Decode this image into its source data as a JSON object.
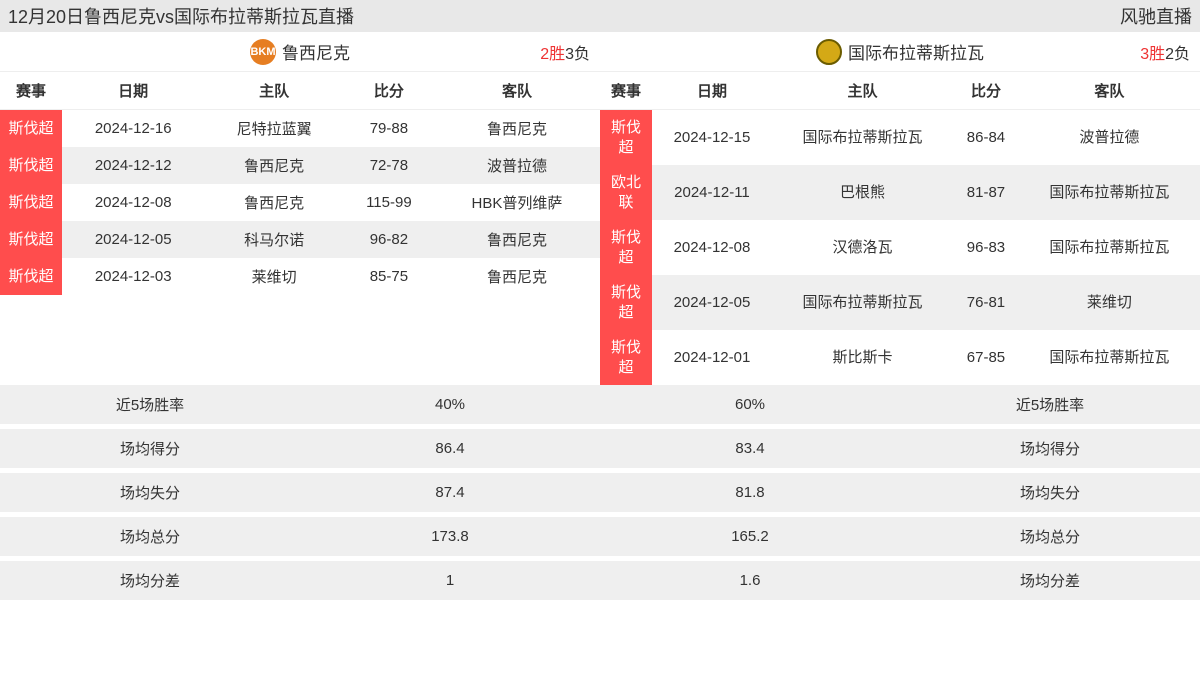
{
  "header": {
    "title": "12月20日鲁西尼克vs国际布拉蒂斯拉瓦直播",
    "site": "风驰直播"
  },
  "left": {
    "team_name": "鲁西尼克",
    "logo_text": "BKM",
    "logo_bg": "#e67e22",
    "wins_text": "2胜",
    "losses_text": "3负",
    "thead": {
      "league": "赛事",
      "date": "日期",
      "home": "主队",
      "score": "比分",
      "away": "客队"
    },
    "rows": [
      {
        "league": "斯伐超",
        "date": "2024-12-16",
        "home": "尼特拉蓝翼",
        "score": "79-88",
        "away": "鲁西尼克"
      },
      {
        "league": "斯伐超",
        "date": "2024-12-12",
        "home": "鲁西尼克",
        "score": "72-78",
        "away": "波普拉德"
      },
      {
        "league": "斯伐超",
        "date": "2024-12-08",
        "home": "鲁西尼克",
        "score": "115-99",
        "away": "HBK普列维萨"
      },
      {
        "league": "斯伐超",
        "date": "2024-12-05",
        "home": "科马尔诺",
        "score": "96-82",
        "away": "鲁西尼克"
      },
      {
        "league": "斯伐超",
        "date": "2024-12-03",
        "home": "莱维切",
        "score": "85-75",
        "away": "鲁西尼克"
      }
    ]
  },
  "right": {
    "team_name": "国际布拉蒂斯拉瓦",
    "logo_text": "",
    "logo_bg": "#d4a916",
    "wins_text": "3胜",
    "losses_text": "2负",
    "thead": {
      "league": "赛事",
      "date": "日期",
      "home": "主队",
      "score": "比分",
      "away": "客队"
    },
    "rows": [
      {
        "league": "斯伐超",
        "date": "2024-12-15",
        "home": "国际布拉蒂斯拉瓦",
        "score": "86-84",
        "away": "波普拉德"
      },
      {
        "league": "欧北联",
        "date": "2024-12-11",
        "home": "巴根熊",
        "score": "81-87",
        "away": "国际布拉蒂斯拉瓦"
      },
      {
        "league": "斯伐超",
        "date": "2024-12-08",
        "home": "汉德洛瓦",
        "score": "96-83",
        "away": "国际布拉蒂斯拉瓦"
      },
      {
        "league": "斯伐超",
        "date": "2024-12-05",
        "home": "国际布拉蒂斯拉瓦",
        "score": "76-81",
        "away": "莱维切"
      },
      {
        "league": "斯伐超",
        "date": "2024-12-01",
        "home": "斯比斯卡",
        "score": "67-85",
        "away": "国际布拉蒂斯拉瓦"
      }
    ]
  },
  "stats": {
    "labels": {
      "winrate": "近5场胜率",
      "avg_score": "场均得分",
      "avg_concede": "场均失分",
      "avg_total": "场均总分",
      "avg_diff": "场均分差"
    },
    "left": {
      "winrate": "40%",
      "avg_score": "86.4",
      "avg_concede": "87.4",
      "avg_total": "173.8",
      "avg_diff": "1"
    },
    "right": {
      "winrate": "60%",
      "avg_score": "83.4",
      "avg_concede": "81.8",
      "avg_total": "165.2",
      "avg_diff": "1.6"
    }
  },
  "colors": {
    "league_bg": "#ff4d4d",
    "stripe_bg": "#efefef",
    "header_bg": "#e8e8e8",
    "wins_color": "#e33333"
  }
}
